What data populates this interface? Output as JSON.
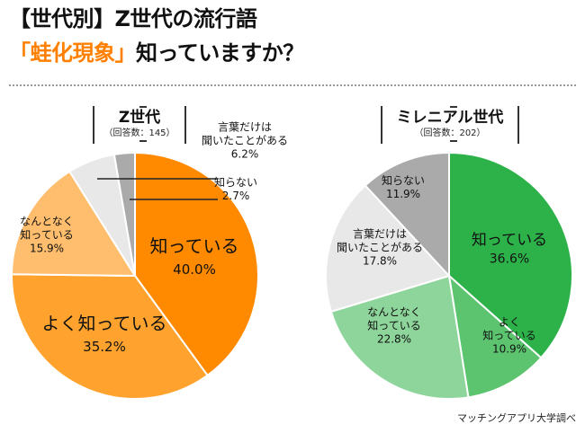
{
  "title": {
    "line1": "【世代別】Z世代の流行語",
    "line2_highlight": "「蛙化現象」",
    "line2_rest": "知っていますか？"
  },
  "accent_color": "#ff8000",
  "source": "マッチングアプリ大学調べ",
  "chart_data": [
    {
      "type": "pie",
      "title": "Z世代",
      "subtitle": "（回答数：145）",
      "slices": [
        {
          "label": "知っている",
          "value": 40.0,
          "text": "40.0%",
          "color": "#ff8a00",
          "text_color": "#111111"
        },
        {
          "label": "よく知っている",
          "value": 35.2,
          "text": "35.2%",
          "color": "#ffa32e",
          "text_color": "#111111"
        },
        {
          "label": "なんとなく知っている",
          "value": 15.9,
          "text": "15.9%",
          "color": "#ffbe6e",
          "text_color": "#111111"
        },
        {
          "label": "言葉だけは聞いたことがある",
          "value": 6.2,
          "text": "6.2%",
          "color": "#e8e8e8",
          "text_color": "#111111"
        },
        {
          "label": "知らない",
          "value": 2.7,
          "text": "2.7%",
          "color": "#aaaaaa",
          "text_color": "#111111"
        }
      ]
    },
    {
      "type": "pie",
      "title": "ミレニアル世代",
      "subtitle": "（回答数：202）",
      "slices": [
        {
          "label": "知っている",
          "value": 36.6,
          "text": "36.6%",
          "color": "#2db24a",
          "text_color": "#111111"
        },
        {
          "label": "よく知っている",
          "value": 10.9,
          "text": "10.9%",
          "color": "#5cc46f",
          "text_color": "#111111"
        },
        {
          "label": "なんとなく知っている",
          "value": 22.8,
          "text": "22.8%",
          "color": "#8dd59a",
          "text_color": "#111111"
        },
        {
          "label": "言葉だけは聞いたことがある",
          "value": 17.8,
          "text": "17.8%",
          "color": "#e8e8e8",
          "text_color": "#111111"
        },
        {
          "label": "知らない",
          "value": 11.9,
          "text": "11.9%",
          "color": "#aaaaaa",
          "text_color": "#111111"
        }
      ]
    }
  ]
}
